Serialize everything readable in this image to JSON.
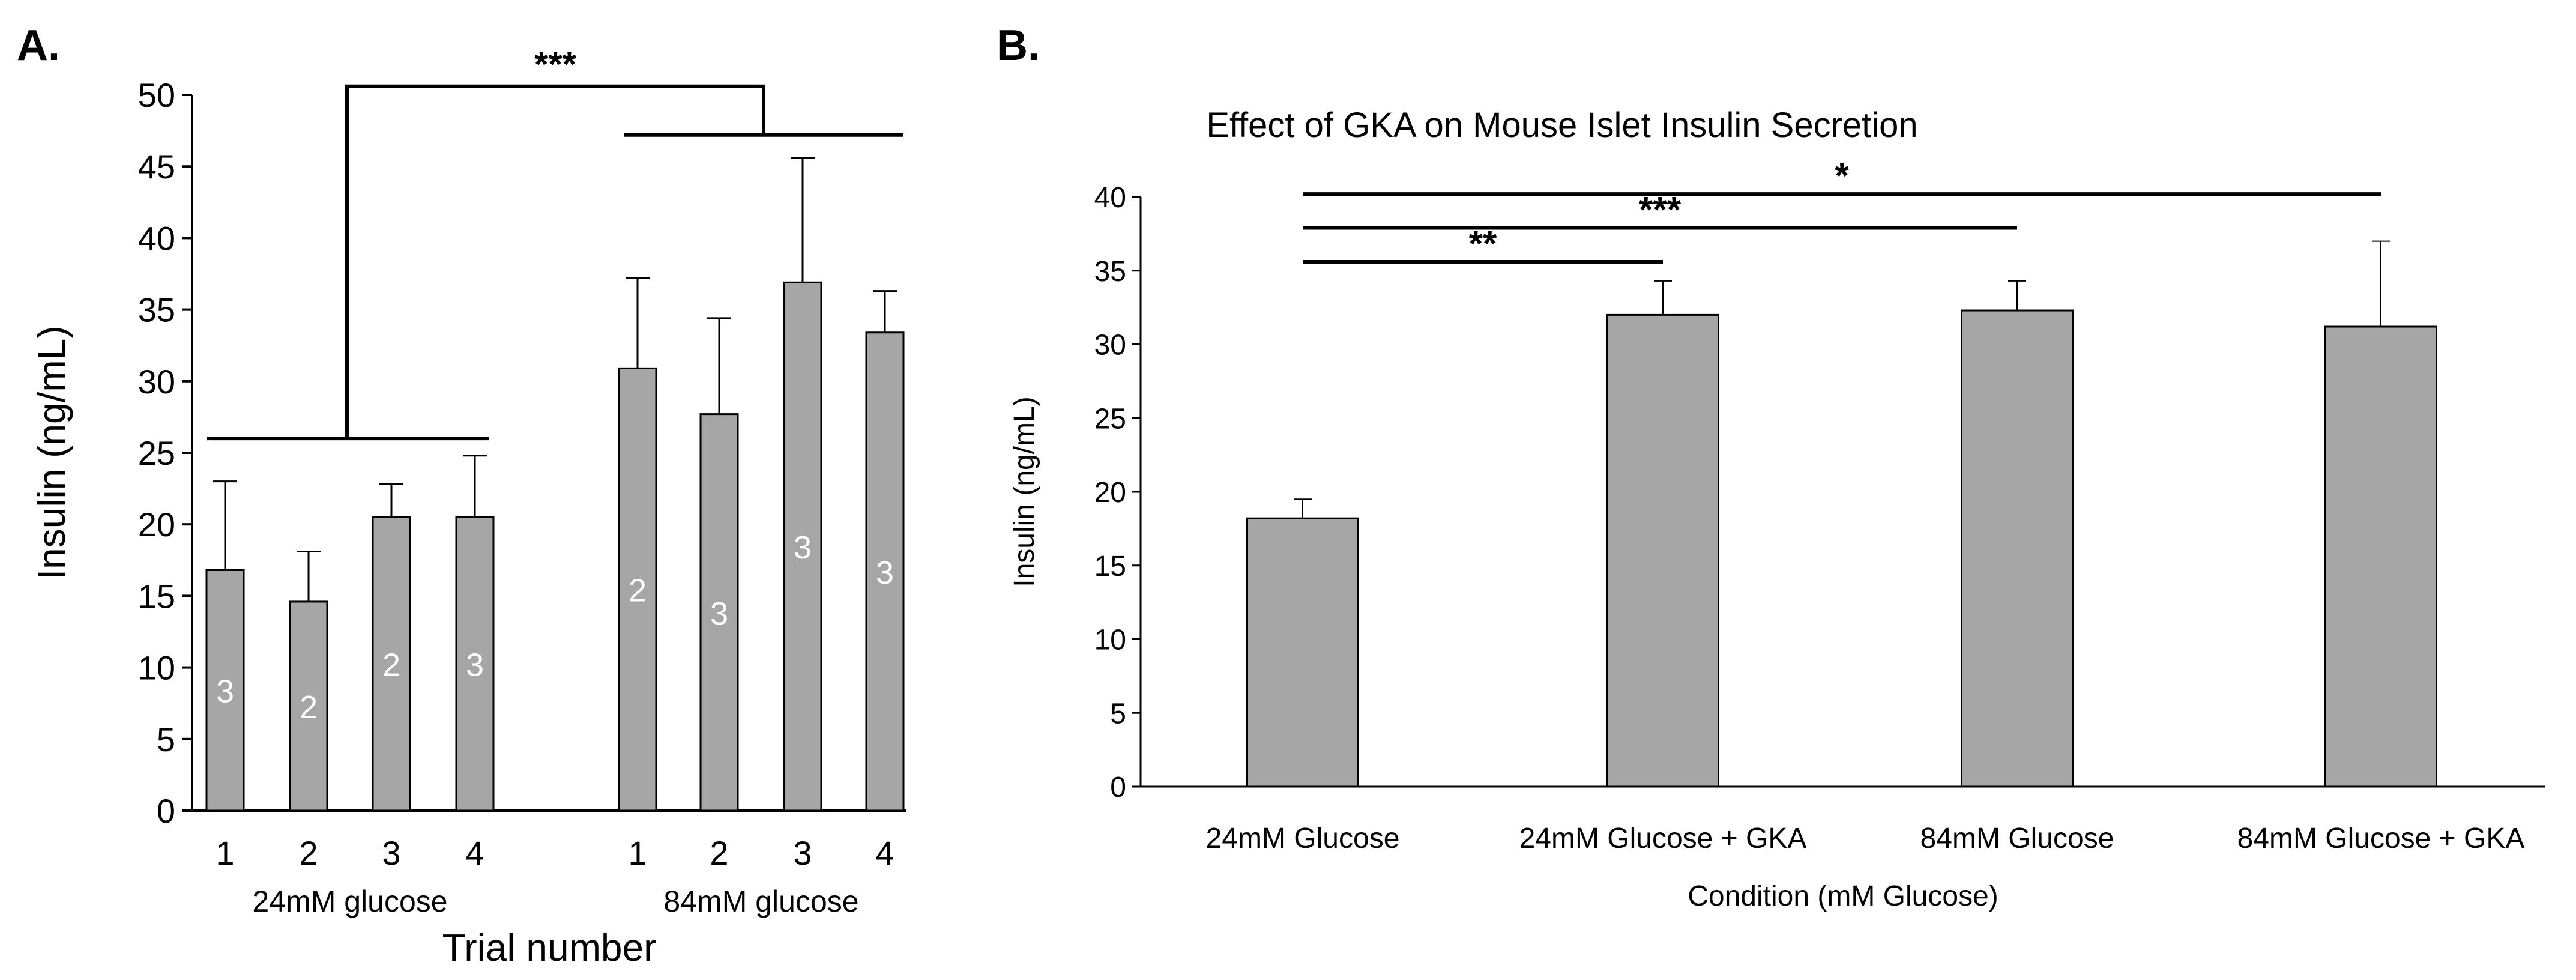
{
  "chart_data": [
    {
      "panel": "A.",
      "type": "bar",
      "title": "",
      "xlabel": "Trial number",
      "ylabel": "Insulin (ng/mL)",
      "ylim": [
        0,
        50
      ],
      "yticks": [
        0,
        5,
        10,
        15,
        20,
        25,
        30,
        35,
        40,
        45,
        50
      ],
      "groups": [
        {
          "name": "24mM glucose",
          "categories": [
            "1",
            "2",
            "3",
            "4"
          ],
          "values": [
            16.8,
            14.6,
            20.5,
            20.5
          ],
          "errors": [
            6.2,
            3.5,
            2.3,
            4.3
          ],
          "n": [
            "3",
            "2",
            "2",
            "3"
          ]
        },
        {
          "name": "84mM glucose",
          "categories": [
            "1",
            "2",
            "3",
            "4"
          ],
          "values": [
            30.9,
            27.7,
            36.9,
            33.4
          ],
          "errors": [
            6.3,
            6.7,
            8.7,
            2.9
          ],
          "n": [
            "2",
            "3",
            "3",
            "3"
          ]
        }
      ],
      "significance": [
        {
          "between": [
            "24mM glucose",
            "84mM glucose"
          ],
          "label": "***"
        }
      ]
    },
    {
      "panel": "B.",
      "type": "bar",
      "title": "Effect of GKA on Mouse Islet Insulin Secretion",
      "xlabel": "Condition (mM Glucose)",
      "ylabel": "Insulin (ng/mL)",
      "ylim": [
        0,
        40
      ],
      "yticks": [
        0,
        5,
        10,
        15,
        20,
        25,
        30,
        35,
        40
      ],
      "categories": [
        "24mM Glucose",
        "24mM Glucose + GKA",
        "84mM Glucose",
        "84mM Glucose + GKA"
      ],
      "values": [
        18.2,
        32.0,
        32.3,
        31.2
      ],
      "errors": [
        1.3,
        2.3,
        2.0,
        5.8
      ],
      "significance": [
        {
          "from": 0,
          "to": 1,
          "label": "**"
        },
        {
          "from": 0,
          "to": 2,
          "label": "***"
        },
        {
          "from": 0,
          "to": 3,
          "label": "*"
        }
      ]
    }
  ]
}
